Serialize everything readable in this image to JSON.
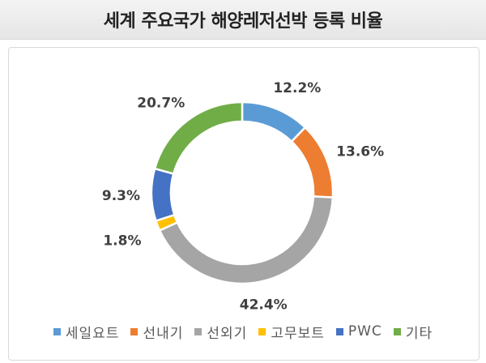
{
  "title": "세계 주요국가 해양레저선박 등록 비율",
  "chart_data": {
    "type": "pie",
    "donut": true,
    "title": "세계 주요국가 해양레저선박 등록 비율",
    "legend_position": "bottom",
    "categories": [
      "세일요트",
      "선내기",
      "선외기",
      "고무보트",
      "PWC",
      "기타"
    ],
    "values": [
      12.2,
      13.6,
      42.4,
      1.8,
      9.3,
      20.7
    ],
    "labels": [
      "12.2%",
      "13.6%",
      "42.4%",
      "1.8%",
      "9.3%",
      "20.7%"
    ],
    "colors": [
      "#5b9bd5",
      "#ed7d31",
      "#a5a5a5",
      "#ffc000",
      "#4472c4",
      "#70ad47"
    ]
  }
}
